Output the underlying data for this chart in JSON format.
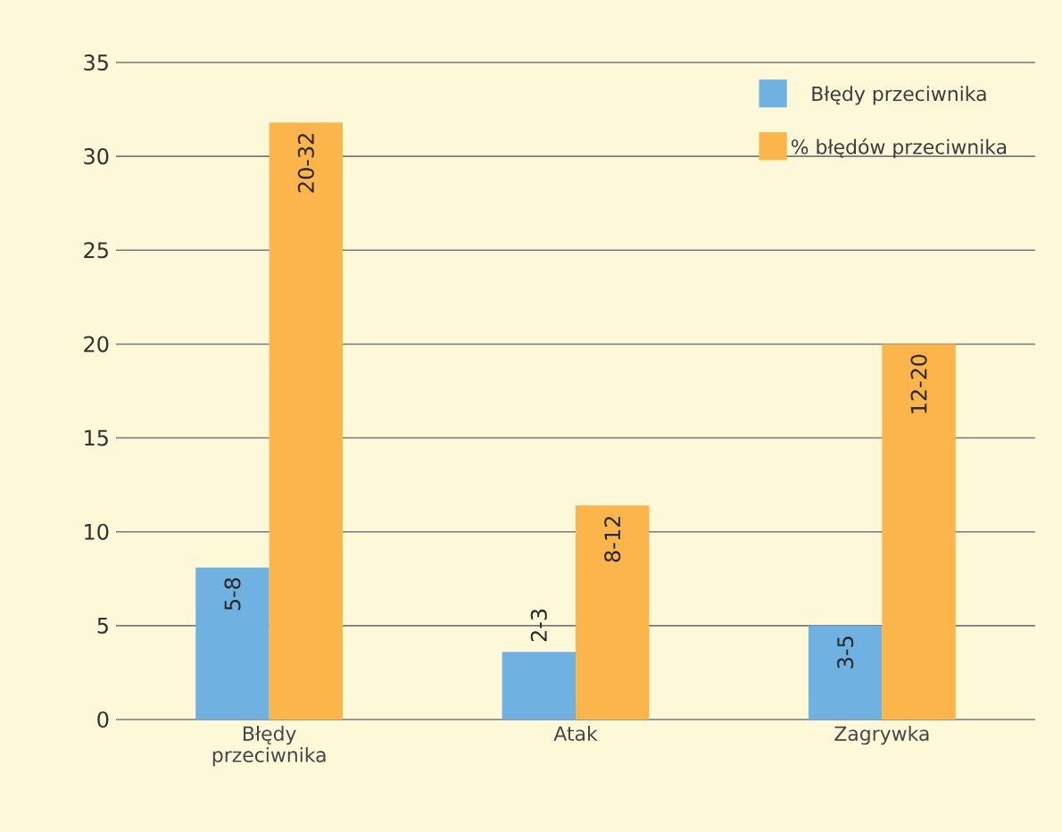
{
  "chart_data": {
    "type": "bar",
    "categories": [
      "Błędy przeciwnika",
      "Atak",
      "Zagrywka"
    ],
    "series": [
      {
        "name": "Błędy przeciwnika",
        "color": "#6fb1e0",
        "values": [
          8.1,
          3.6,
          5.0
        ],
        "value_labels": [
          "5-8",
          "2-3",
          "3-5"
        ]
      },
      {
        "name": "% błędów przeciwnika",
        "color": "#fbb54a",
        "values": [
          31.8,
          11.4,
          20.0
        ],
        "value_labels": [
          "20-32",
          "8-12",
          "12-20"
        ]
      }
    ],
    "ylim": [
      0,
      35
    ],
    "yticks": [
      0,
      5,
      10,
      15,
      20,
      25,
      30,
      35
    ],
    "grid": "y",
    "legend": "top right"
  }
}
